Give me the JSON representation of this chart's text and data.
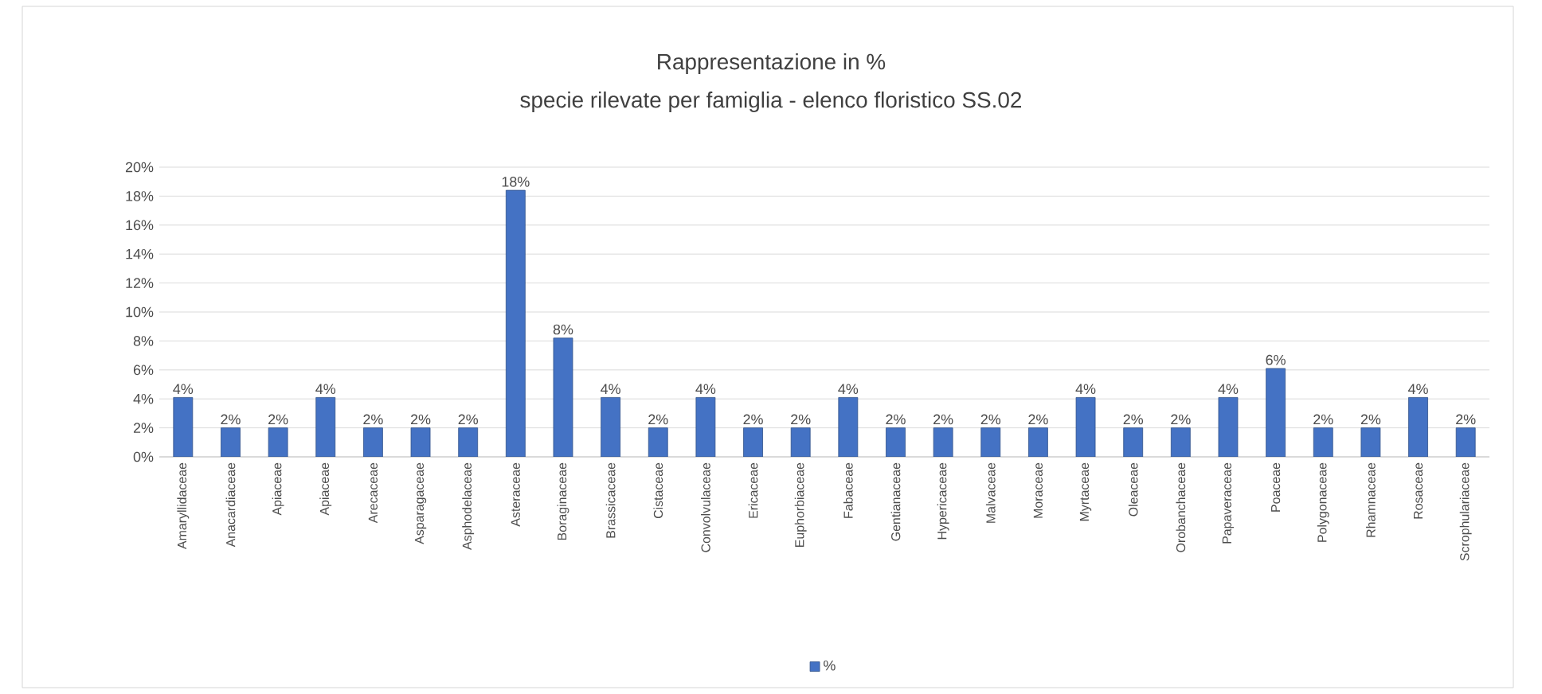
{
  "chart_data": {
    "type": "bar",
    "title": "Rappresentazione in %",
    "subtitle": "specie rilevate per famiglia - elenco floristico SS.02",
    "categories": [
      "Amaryllidaceae",
      "Anacardiaceae",
      "Apiaceae",
      "Apiaceae",
      "Arecaceae",
      "Asparagaceae",
      "Asphodelaceae",
      "Asteraceae",
      "Boraginaceae",
      "Brassicaceae",
      "Cistaceae",
      "Convolvulaceae",
      "Ericaceae",
      "Euphorbiaceae",
      "Fabaceae",
      "Gentianaceae",
      "Hypericaceae",
      "Malvaceae",
      "Moraceae",
      "Myrtaceae",
      "Oleaceae",
      "Orobanchaceae",
      "Papaveraceae",
      "Poaceae",
      "Polygonaceae",
      "Rhamnaceae",
      "Rosaceae",
      "Scrophulariaceae"
    ],
    "series": [
      {
        "name": "%",
        "color": "#4472c4",
        "values": [
          4.1,
          2.0,
          2.0,
          4.1,
          2.0,
          2.0,
          2.0,
          18.4,
          8.2,
          4.1,
          2.0,
          4.1,
          2.0,
          2.0,
          4.1,
          2.0,
          2.0,
          2.0,
          2.0,
          4.1,
          2.0,
          2.0,
          4.1,
          6.1,
          2.0,
          2.0,
          4.1,
          2.0
        ],
        "value_labels": [
          "4%",
          "2%",
          "2%",
          "4%",
          "2%",
          "2%",
          "2%",
          "18%",
          "8%",
          "4%",
          "2%",
          "4%",
          "2%",
          "2%",
          "4%",
          "2%",
          "2%",
          "2%",
          "2%",
          "4%",
          "2%",
          "2%",
          "4%",
          "6%",
          "2%",
          "2%",
          "4%",
          "2%"
        ]
      }
    ],
    "ylim": [
      0,
      20
    ],
    "yticks": [
      {
        "value": 0,
        "label": "0%"
      },
      {
        "value": 2,
        "label": "2%"
      },
      {
        "value": 4,
        "label": "4%"
      },
      {
        "value": 6,
        "label": "6%"
      },
      {
        "value": 8,
        "label": "8%"
      },
      {
        "value": 10,
        "label": "10%"
      },
      {
        "value": 12,
        "label": "12%"
      },
      {
        "value": 14,
        "label": "14%"
      },
      {
        "value": 16,
        "label": "16%"
      },
      {
        "value": 18,
        "label": "18%"
      },
      {
        "value": 20,
        "label": "20%"
      }
    ],
    "grid": "y",
    "legend": "bottom"
  }
}
